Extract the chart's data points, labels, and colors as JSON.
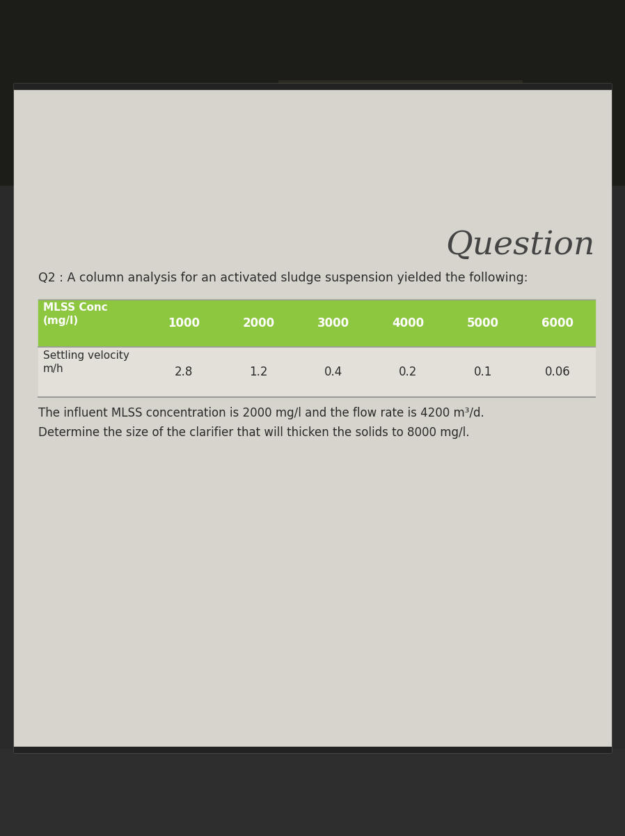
{
  "title": "Question",
  "q2_text": "Q2 : A column analysis for an activated sludge suspension yielded the following:",
  "table_header_label": "MLSS Conc\n(mg/l)",
  "table_header_values": [
    "1000",
    "2000",
    "3000",
    "4000",
    "5000",
    "6000"
  ],
  "table_row1_label": "Settling velocity\nm/h",
  "table_row1_values": [
    "2.8",
    "1.2",
    "0.4",
    "0.2",
    "0.1",
    "0.06"
  ],
  "footer_text": "The influent MLSS concentration is 2000 mg/l and the flow rate is 4200 m³/d.\nDetermine the size of the clarifier that will thicken the solids to 8000 mg/l.",
  "header_bg": "#8dc63f",
  "header_text_color": "#ffffff",
  "title_color": "#444444",
  "body_text_color": "#2a2a2a",
  "table_border_color": "#999999",
  "top_dark_color": "#1a1a1a",
  "bottom_dark_color": "#2e2e2e",
  "slide_bg": "#d6d4cc",
  "row_bg": "#e2e0d8"
}
